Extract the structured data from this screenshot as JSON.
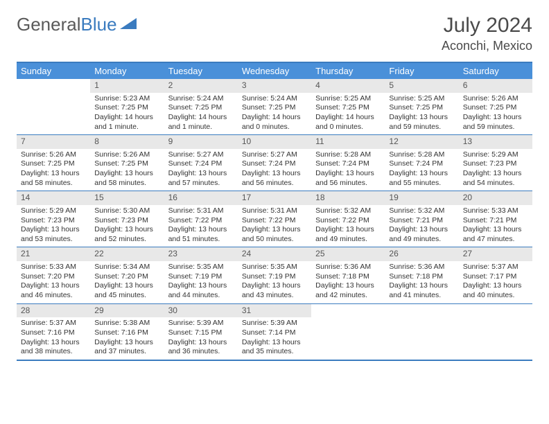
{
  "logo": {
    "text1": "General",
    "text2": "Blue"
  },
  "month_title": "July 2024",
  "location": "Aconchi, Mexico",
  "header_bg": "#4a90d9",
  "border_color": "#3a7bbf",
  "daynum_bg": "#e8e8e8",
  "day_names": [
    "Sunday",
    "Monday",
    "Tuesday",
    "Wednesday",
    "Thursday",
    "Friday",
    "Saturday"
  ],
  "weeks": [
    [
      null,
      {
        "n": "1",
        "sr": "Sunrise: 5:23 AM",
        "ss": "Sunset: 7:25 PM",
        "d1": "Daylight: 14 hours",
        "d2": "and 1 minute."
      },
      {
        "n": "2",
        "sr": "Sunrise: 5:24 AM",
        "ss": "Sunset: 7:25 PM",
        "d1": "Daylight: 14 hours",
        "d2": "and 1 minute."
      },
      {
        "n": "3",
        "sr": "Sunrise: 5:24 AM",
        "ss": "Sunset: 7:25 PM",
        "d1": "Daylight: 14 hours",
        "d2": "and 0 minutes."
      },
      {
        "n": "4",
        "sr": "Sunrise: 5:25 AM",
        "ss": "Sunset: 7:25 PM",
        "d1": "Daylight: 14 hours",
        "d2": "and 0 minutes."
      },
      {
        "n": "5",
        "sr": "Sunrise: 5:25 AM",
        "ss": "Sunset: 7:25 PM",
        "d1": "Daylight: 13 hours",
        "d2": "and 59 minutes."
      },
      {
        "n": "6",
        "sr": "Sunrise: 5:26 AM",
        "ss": "Sunset: 7:25 PM",
        "d1": "Daylight: 13 hours",
        "d2": "and 59 minutes."
      }
    ],
    [
      {
        "n": "7",
        "sr": "Sunrise: 5:26 AM",
        "ss": "Sunset: 7:25 PM",
        "d1": "Daylight: 13 hours",
        "d2": "and 58 minutes."
      },
      {
        "n": "8",
        "sr": "Sunrise: 5:26 AM",
        "ss": "Sunset: 7:25 PM",
        "d1": "Daylight: 13 hours",
        "d2": "and 58 minutes."
      },
      {
        "n": "9",
        "sr": "Sunrise: 5:27 AM",
        "ss": "Sunset: 7:24 PM",
        "d1": "Daylight: 13 hours",
        "d2": "and 57 minutes."
      },
      {
        "n": "10",
        "sr": "Sunrise: 5:27 AM",
        "ss": "Sunset: 7:24 PM",
        "d1": "Daylight: 13 hours",
        "d2": "and 56 minutes."
      },
      {
        "n": "11",
        "sr": "Sunrise: 5:28 AM",
        "ss": "Sunset: 7:24 PM",
        "d1": "Daylight: 13 hours",
        "d2": "and 56 minutes."
      },
      {
        "n": "12",
        "sr": "Sunrise: 5:28 AM",
        "ss": "Sunset: 7:24 PM",
        "d1": "Daylight: 13 hours",
        "d2": "and 55 minutes."
      },
      {
        "n": "13",
        "sr": "Sunrise: 5:29 AM",
        "ss": "Sunset: 7:23 PM",
        "d1": "Daylight: 13 hours",
        "d2": "and 54 minutes."
      }
    ],
    [
      {
        "n": "14",
        "sr": "Sunrise: 5:29 AM",
        "ss": "Sunset: 7:23 PM",
        "d1": "Daylight: 13 hours",
        "d2": "and 53 minutes."
      },
      {
        "n": "15",
        "sr": "Sunrise: 5:30 AM",
        "ss": "Sunset: 7:23 PM",
        "d1": "Daylight: 13 hours",
        "d2": "and 52 minutes."
      },
      {
        "n": "16",
        "sr": "Sunrise: 5:31 AM",
        "ss": "Sunset: 7:22 PM",
        "d1": "Daylight: 13 hours",
        "d2": "and 51 minutes."
      },
      {
        "n": "17",
        "sr": "Sunrise: 5:31 AM",
        "ss": "Sunset: 7:22 PM",
        "d1": "Daylight: 13 hours",
        "d2": "and 50 minutes."
      },
      {
        "n": "18",
        "sr": "Sunrise: 5:32 AM",
        "ss": "Sunset: 7:22 PM",
        "d1": "Daylight: 13 hours",
        "d2": "and 49 minutes."
      },
      {
        "n": "19",
        "sr": "Sunrise: 5:32 AM",
        "ss": "Sunset: 7:21 PM",
        "d1": "Daylight: 13 hours",
        "d2": "and 49 minutes."
      },
      {
        "n": "20",
        "sr": "Sunrise: 5:33 AM",
        "ss": "Sunset: 7:21 PM",
        "d1": "Daylight: 13 hours",
        "d2": "and 47 minutes."
      }
    ],
    [
      {
        "n": "21",
        "sr": "Sunrise: 5:33 AM",
        "ss": "Sunset: 7:20 PM",
        "d1": "Daylight: 13 hours",
        "d2": "and 46 minutes."
      },
      {
        "n": "22",
        "sr": "Sunrise: 5:34 AM",
        "ss": "Sunset: 7:20 PM",
        "d1": "Daylight: 13 hours",
        "d2": "and 45 minutes."
      },
      {
        "n": "23",
        "sr": "Sunrise: 5:35 AM",
        "ss": "Sunset: 7:19 PM",
        "d1": "Daylight: 13 hours",
        "d2": "and 44 minutes."
      },
      {
        "n": "24",
        "sr": "Sunrise: 5:35 AM",
        "ss": "Sunset: 7:19 PM",
        "d1": "Daylight: 13 hours",
        "d2": "and 43 minutes."
      },
      {
        "n": "25",
        "sr": "Sunrise: 5:36 AM",
        "ss": "Sunset: 7:18 PM",
        "d1": "Daylight: 13 hours",
        "d2": "and 42 minutes."
      },
      {
        "n": "26",
        "sr": "Sunrise: 5:36 AM",
        "ss": "Sunset: 7:18 PM",
        "d1": "Daylight: 13 hours",
        "d2": "and 41 minutes."
      },
      {
        "n": "27",
        "sr": "Sunrise: 5:37 AM",
        "ss": "Sunset: 7:17 PM",
        "d1": "Daylight: 13 hours",
        "d2": "and 40 minutes."
      }
    ],
    [
      {
        "n": "28",
        "sr": "Sunrise: 5:37 AM",
        "ss": "Sunset: 7:16 PM",
        "d1": "Daylight: 13 hours",
        "d2": "and 38 minutes."
      },
      {
        "n": "29",
        "sr": "Sunrise: 5:38 AM",
        "ss": "Sunset: 7:16 PM",
        "d1": "Daylight: 13 hours",
        "d2": "and 37 minutes."
      },
      {
        "n": "30",
        "sr": "Sunrise: 5:39 AM",
        "ss": "Sunset: 7:15 PM",
        "d1": "Daylight: 13 hours",
        "d2": "and 36 minutes."
      },
      {
        "n": "31",
        "sr": "Sunrise: 5:39 AM",
        "ss": "Sunset: 7:14 PM",
        "d1": "Daylight: 13 hours",
        "d2": "and 35 minutes."
      },
      null,
      null,
      null
    ]
  ]
}
